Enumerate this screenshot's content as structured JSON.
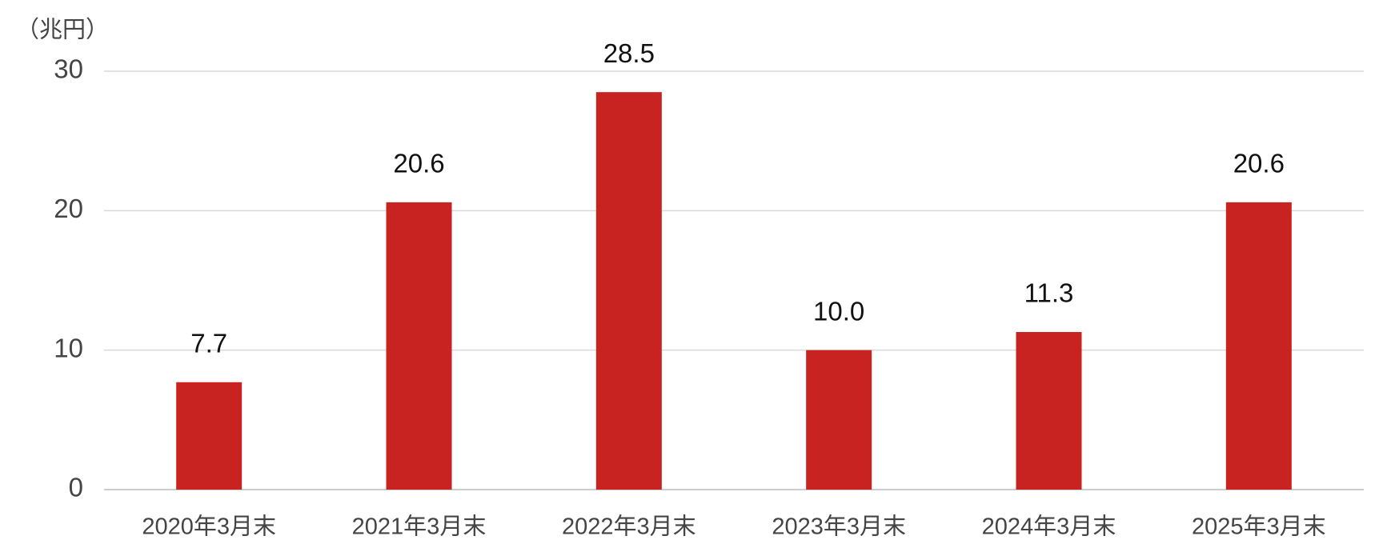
{
  "chart_data": {
    "type": "bar",
    "y_label": "（兆円）",
    "categories": [
      "2020年3月末",
      "2021年3月末",
      "2022年3月末",
      "2023年3月末",
      "2024年3月末",
      "2025年3月末"
    ],
    "values": [
      7.7,
      20.6,
      28.5,
      10.0,
      11.3,
      20.6
    ],
    "value_labels": [
      "7.7",
      "20.6",
      "28.5",
      "10.0",
      "11.3",
      "20.6"
    ],
    "color": "#c82320",
    "ylim": [
      0,
      30
    ],
    "yticks": [
      0,
      10,
      20,
      30
    ],
    "grid": true
  }
}
